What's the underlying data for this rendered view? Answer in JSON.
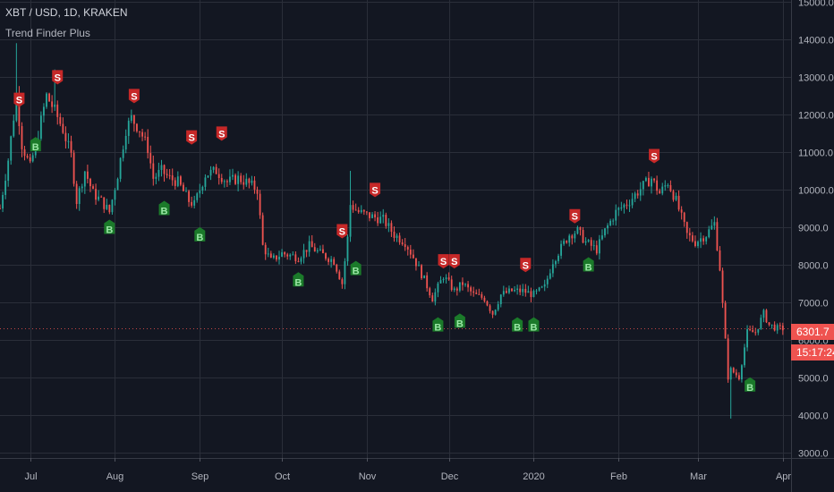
{
  "header": {
    "symbol_line": "XBT / USD, 1D, KRAKEN",
    "indicator_line": "Trend Finder Plus"
  },
  "price_tag": {
    "value": "6301.7",
    "countdown": "15:17:24"
  },
  "colors": {
    "background": "#131722",
    "grid": "#2a2e39",
    "up": "#26a69a",
    "down": "#ef5350",
    "buy_badge": "#1b7a2a",
    "sell_badge": "#c62828",
    "axis_text": "#b2b5be"
  },
  "chart_data": {
    "type": "candlestick",
    "y_axis": {
      "position": "right",
      "ticks": [
        "15000.0",
        "14000.0",
        "13000.0",
        "12000.0",
        "11000.0",
        "10000.0",
        "9000.0",
        "8000.0",
        "7000.0",
        "6000.0",
        "5000.0",
        "4000.0",
        "3000.0"
      ],
      "range": [
        2850,
        15050
      ]
    },
    "x_axis": {
      "ticks": [
        "Jul",
        "Aug",
        "Sep",
        "Oct",
        "Nov",
        "Dec",
        "2020",
        "Feb",
        "Mar",
        "Apr"
      ],
      "tick_dates": [
        "2019-07-01",
        "2019-08-01",
        "2019-09-01",
        "2019-10-01",
        "2019-11-01",
        "2019-12-01",
        "2020-01-01",
        "2020-02-01",
        "2020-03-01",
        "2020-04-01"
      ],
      "range": [
        "2019-06-20",
        "2020-04-04"
      ]
    },
    "grid": true,
    "close_path": [
      [
        "2019-06-20",
        9500
      ],
      [
        "2019-06-23",
        10800
      ],
      [
        "2019-06-26",
        12500
      ],
      [
        "2019-06-28",
        11200
      ],
      [
        "2019-07-01",
        10600
      ],
      [
        "2019-07-04",
        11500
      ],
      [
        "2019-07-07",
        12500
      ],
      [
        "2019-07-10",
        12100
      ],
      [
        "2019-07-13",
        11600
      ],
      [
        "2019-07-16",
        10900
      ],
      [
        "2019-07-18",
        9700
      ],
      [
        "2019-07-21",
        10500
      ],
      [
        "2019-07-24",
        9900
      ],
      [
        "2019-07-27",
        9700
      ],
      [
        "2019-07-30",
        9400
      ],
      [
        "2019-08-02",
        10400
      ],
      [
        "2019-08-05",
        11600
      ],
      [
        "2019-08-07",
        11900
      ],
      [
        "2019-08-10",
        11600
      ],
      [
        "2019-08-13",
        11100
      ],
      [
        "2019-08-15",
        10300
      ],
      [
        "2019-08-18",
        10500
      ],
      [
        "2019-08-21",
        10300
      ],
      [
        "2019-08-24",
        10200
      ],
      [
        "2019-08-28",
        9700
      ],
      [
        "2019-08-30",
        9600
      ],
      [
        "2019-09-03",
        10400
      ],
      [
        "2019-09-07",
        10500
      ],
      [
        "2019-09-11",
        10200
      ],
      [
        "2019-09-15",
        10300
      ],
      [
        "2019-09-18",
        10200
      ],
      [
        "2019-09-22",
        10000
      ],
      [
        "2019-09-24",
        8500
      ],
      [
        "2019-09-27",
        8100
      ],
      [
        "2019-10-01",
        8300
      ],
      [
        "2019-10-07",
        8200
      ],
      [
        "2019-10-11",
        8500
      ],
      [
        "2019-10-15",
        8300
      ],
      [
        "2019-10-20",
        8100
      ],
      [
        "2019-10-23",
        7500
      ],
      [
        "2019-10-25",
        8700
      ],
      [
        "2019-10-26",
        9600
      ],
      [
        "2019-10-29",
        9400
      ],
      [
        "2019-11-02",
        9300
      ],
      [
        "2019-11-07",
        9200
      ],
      [
        "2019-11-11",
        8800
      ],
      [
        "2019-11-15",
        8600
      ],
      [
        "2019-11-18",
        8200
      ],
      [
        "2019-11-22",
        7600
      ],
      [
        "2019-11-25",
        7100
      ],
      [
        "2019-11-29",
        7700
      ],
      [
        "2019-12-03",
        7300
      ],
      [
        "2019-12-06",
        7500
      ],
      [
        "2019-12-10",
        7200
      ],
      [
        "2019-12-14",
        7100
      ],
      [
        "2019-12-17",
        6700
      ],
      [
        "2019-12-20",
        7200
      ],
      [
        "2019-12-24",
        7300
      ],
      [
        "2019-12-28",
        7300
      ],
      [
        "2020-01-01",
        7200
      ],
      [
        "2020-01-05",
        7400
      ],
      [
        "2020-01-08",
        8100
      ],
      [
        "2020-01-14",
        8800
      ],
      [
        "2020-01-17",
        8900
      ],
      [
        "2020-01-20",
        8600
      ],
      [
        "2020-01-24",
        8400
      ],
      [
        "2020-01-27",
        8900
      ],
      [
        "2020-01-31",
        9400
      ],
      [
        "2020-02-05",
        9700
      ],
      [
        "2020-02-10",
        10100
      ],
      [
        "2020-02-13",
        10300
      ],
      [
        "2020-02-16",
        9900
      ],
      [
        "2020-02-19",
        10200
      ],
      [
        "2020-02-22",
        9700
      ],
      [
        "2020-02-26",
        8800
      ],
      [
        "2020-02-29",
        8600
      ],
      [
        "2020-03-04",
        8800
      ],
      [
        "2020-03-07",
        9100
      ],
      [
        "2020-03-09",
        7900
      ],
      [
        "2020-03-12",
        5000
      ],
      [
        "2020-03-13",
        5200
      ],
      [
        "2020-03-16",
        5000
      ],
      [
        "2020-03-19",
        6200
      ],
      [
        "2020-03-22",
        6200
      ],
      [
        "2020-03-25",
        6700
      ],
      [
        "2020-03-27",
        6400
      ],
      [
        "2020-03-30",
        6300
      ],
      [
        "2020-04-01",
        6300
      ]
    ],
    "extremes": [
      {
        "date": "2019-06-26",
        "high": 13900
      },
      {
        "date": "2019-07-10",
        "high": 13200
      },
      {
        "date": "2019-10-26",
        "high": 10500
      },
      {
        "date": "2020-03-13",
        "low": 3900
      }
    ],
    "signals": [
      {
        "label": "S",
        "date": "2019-06-27",
        "price": 12200
      },
      {
        "label": "B",
        "date": "2019-07-03",
        "price": 11400
      },
      {
        "label": "S",
        "date": "2019-07-11",
        "price": 12800
      },
      {
        "label": "B",
        "date": "2019-07-30",
        "price": 9200
      },
      {
        "label": "S",
        "date": "2019-08-08",
        "price": 12300
      },
      {
        "label": "B",
        "date": "2019-08-19",
        "price": 9700
      },
      {
        "label": "S",
        "date": "2019-08-29",
        "price": 11200
      },
      {
        "label": "B",
        "date": "2019-09-01",
        "price": 9000
      },
      {
        "label": "S",
        "date": "2019-09-09",
        "price": 11300
      },
      {
        "label": "B",
        "date": "2019-10-07",
        "price": 7800
      },
      {
        "label": "S",
        "date": "2019-10-23",
        "price": 8700
      },
      {
        "label": "B",
        "date": "2019-10-28",
        "price": 8100
      },
      {
        "label": "S",
        "date": "2019-11-04",
        "price": 9800
      },
      {
        "label": "B",
        "date": "2019-11-27",
        "price": 6600
      },
      {
        "label": "S",
        "date": "2019-11-29",
        "price": 7900
      },
      {
        "label": "S",
        "date": "2019-12-03",
        "price": 7900
      },
      {
        "label": "B",
        "date": "2019-12-05",
        "price": 6700
      },
      {
        "label": "B",
        "date": "2019-12-26",
        "price": 6600
      },
      {
        "label": "S",
        "date": "2019-12-29",
        "price": 7800
      },
      {
        "label": "B",
        "date": "2020-01-01",
        "price": 6600
      },
      {
        "label": "S",
        "date": "2020-01-16",
        "price": 9100
      },
      {
        "label": "B",
        "date": "2020-01-21",
        "price": 8200
      },
      {
        "label": "S",
        "date": "2020-02-14",
        "price": 10700
      },
      {
        "label": "B",
        "date": "2020-03-20",
        "price": 5000
      }
    ]
  }
}
